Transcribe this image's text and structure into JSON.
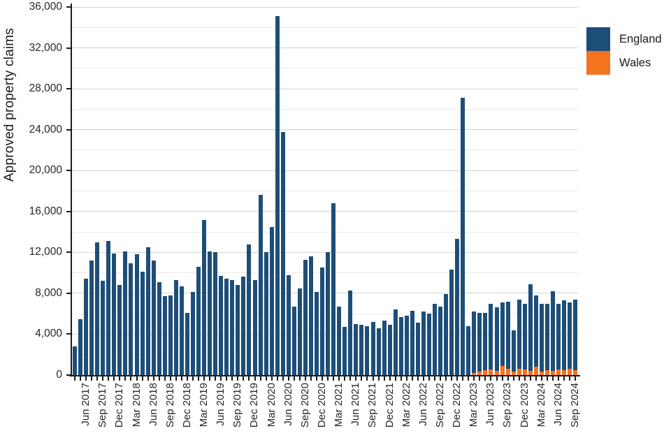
{
  "y_axis": {
    "label": "Approved property claims",
    "ticks": [
      "0",
      "4,000",
      "8,000",
      "12,000",
      "16,000",
      "20,000",
      "24,000",
      "28,000",
      "32,000",
      "36,000"
    ],
    "tick_step": 4000,
    "minor_grid_step": 2000,
    "max": 36000
  },
  "x_axis": {
    "visible_labels": [
      "Jun 2017",
      "Sep 2017",
      "Dec 2017",
      "Mar 2018",
      "Jun 2018",
      "Sep 2018",
      "Dec 2018",
      "Mar 2019",
      "Jun 2019",
      "Sep 2019",
      "Dec 2019",
      "Mar 2020",
      "Jun 2020",
      "Sep 2020",
      "Dec 2020",
      "Mar 2021",
      "Jun 2021",
      "Sep 2021",
      "Dec 2021",
      "Mar 2022",
      "Jun 2022",
      "Sep 2022",
      "Dec 2022",
      "Mar 2023",
      "Jun 2023",
      "Sep 2023",
      "Dec 2023",
      "Mar 2024",
      "Jun 2024",
      "Sep 2024"
    ]
  },
  "legend": {
    "position": "top-right",
    "items": [
      {
        "label": "England",
        "color": "#1d4e79"
      },
      {
        "label": "Wales",
        "color": "#f4731f"
      }
    ]
  },
  "colors": {
    "england": "#1d4e79",
    "wales": "#f4731f",
    "grid_major": "#d2d2d2",
    "grid_minor": "#e9e9e9",
    "axis": "#1a1a1a"
  },
  "chart_data": {
    "type": "bar",
    "stacked": true,
    "title": "",
    "xlabel": "",
    "ylabel": "Approved property claims",
    "ylim": [
      0,
      36000
    ],
    "grid": true,
    "legend_position": "top-right",
    "x": [
      "Apr 2017",
      "May 2017",
      "Jun 2017",
      "Jul 2017",
      "Aug 2017",
      "Sep 2017",
      "Oct 2017",
      "Nov 2017",
      "Dec 2017",
      "Jan 2018",
      "Feb 2018",
      "Mar 2018",
      "Apr 2018",
      "May 2018",
      "Jun 2018",
      "Jul 2018",
      "Aug 2018",
      "Sep 2018",
      "Oct 2018",
      "Nov 2018",
      "Dec 2018",
      "Jan 2019",
      "Feb 2019",
      "Mar 2019",
      "Apr 2019",
      "May 2019",
      "Jun 2019",
      "Jul 2019",
      "Aug 2019",
      "Sep 2019",
      "Oct 2019",
      "Nov 2019",
      "Dec 2019",
      "Jan 2020",
      "Feb 2020",
      "Mar 2020",
      "Apr 2020",
      "May 2020",
      "Jun 2020",
      "Jul 2020",
      "Aug 2020",
      "Sep 2020",
      "Oct 2020",
      "Nov 2020",
      "Dec 2020",
      "Jan 2021",
      "Feb 2021",
      "Mar 2021",
      "Apr 2021",
      "May 2021",
      "Jun 2021",
      "Jul 2021",
      "Aug 2021",
      "Sep 2021",
      "Oct 2021",
      "Nov 2021",
      "Dec 2021",
      "Jan 2022",
      "Feb 2022",
      "Mar 2022",
      "Apr 2022",
      "May 2022",
      "Jun 2022",
      "Jul 2022",
      "Aug 2022",
      "Sep 2022",
      "Oct 2022",
      "Nov 2022",
      "Dec 2022",
      "Jan 2023",
      "Feb 2023",
      "Mar 2023",
      "Apr 2023",
      "May 2023",
      "Jun 2023",
      "Jul 2023",
      "Aug 2023",
      "Sep 2023",
      "Oct 2023",
      "Nov 2023",
      "Dec 2023",
      "Jan 2024",
      "Feb 2024",
      "Mar 2024",
      "Apr 2024",
      "May 2024",
      "Jun 2024",
      "Jul 2024",
      "Aug 2024",
      "Sep 2024"
    ],
    "series": [
      {
        "name": "England",
        "color": "#1d4e79",
        "values": [
          2800,
          5500,
          9400,
          11200,
          13000,
          9200,
          13100,
          11900,
          8800,
          12100,
          10900,
          11800,
          10100,
          12500,
          11200,
          9100,
          7700,
          7800,
          9300,
          8700,
          6100,
          8100,
          10600,
          15200,
          12100,
          12000,
          9700,
          9400,
          9300,
          8800,
          9600,
          12800,
          9300,
          17600,
          12000,
          14500,
          35100,
          23800,
          9800,
          6700,
          8500,
          11300,
          11600,
          8100,
          10500,
          12000,
          16800,
          6700,
          4700,
          8300,
          5000,
          4900,
          4800,
          5200,
          4600,
          5300,
          4900,
          6400,
          5700,
          5800,
          6300,
          5100,
          6200,
          6000,
          7000,
          6700,
          7900,
          10300,
          13300,
          27100,
          4800,
          6000,
          5750,
          5650,
          6450,
          6200,
          6200,
          6550,
          4050,
          6750,
          6450,
          8500,
          7000,
          6650,
          6550,
          7800,
          6450,
          6850,
          6450,
          6900
        ]
      },
      {
        "name": "Wales",
        "color": "#f4731f",
        "values": [
          0,
          0,
          0,
          0,
          0,
          0,
          0,
          0,
          0,
          0,
          0,
          0,
          0,
          0,
          0,
          0,
          0,
          0,
          0,
          0,
          0,
          0,
          0,
          0,
          0,
          0,
          0,
          0,
          0,
          0,
          0,
          0,
          0,
          0,
          0,
          0,
          0,
          0,
          0,
          0,
          0,
          0,
          0,
          0,
          0,
          0,
          0,
          0,
          0,
          0,
          0,
          0,
          0,
          0,
          0,
          0,
          0,
          0,
          0,
          0,
          0,
          0,
          0,
          0,
          0,
          0,
          0,
          0,
          0,
          0,
          0,
          200,
          350,
          450,
          550,
          400,
          900,
          650,
          350,
          650,
          550,
          400,
          800,
          350,
          450,
          400,
          550,
          450,
          650,
          500
        ]
      }
    ]
  }
}
